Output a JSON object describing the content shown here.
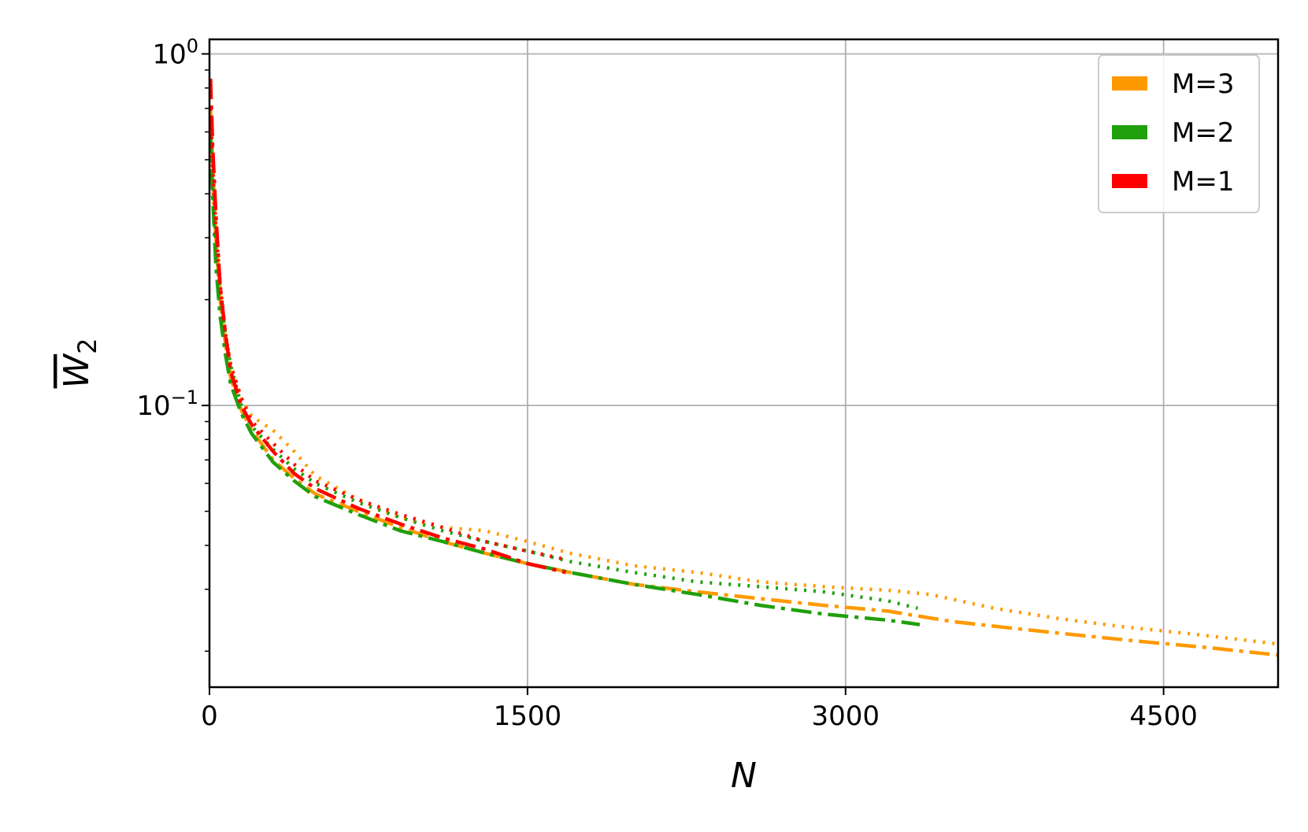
{
  "chart_data": {
    "type": "line",
    "title": "",
    "xlabel": "N",
    "ylabel": "W",
    "ylabel_subscript": "2",
    "yscale": "log",
    "xlim": [
      0,
      5040
    ],
    "ylim": [
      0.0158,
      1.1
    ],
    "grid": true,
    "legend_position": "top-right",
    "x_ticks": [
      {
        "value": 0,
        "label": "0"
      },
      {
        "value": 1500,
        "label": "1500"
      },
      {
        "value": 3000,
        "label": "3000"
      },
      {
        "value": 4500,
        "label": "4500"
      }
    ],
    "y_ticks": [
      {
        "value": 1.0,
        "base": "10",
        "exp": "0"
      },
      {
        "value": 0.1,
        "base": "10",
        "exp": "−1"
      }
    ],
    "y_minor_ticks": [
      0.02,
      0.03,
      0.04,
      0.05,
      0.06,
      0.07,
      0.08,
      0.09,
      0.2,
      0.3,
      0.4,
      0.5,
      0.6,
      0.7,
      0.8,
      0.9
    ],
    "legend": [
      {
        "label": "M=3",
        "color": "#ff9900"
      },
      {
        "label": "M=2",
        "color": "#1fa00c"
      },
      {
        "label": "M=1",
        "color": "#ff0000"
      }
    ],
    "series": [
      {
        "group": "M=3",
        "style": "dotted",
        "color": "#ff9900",
        "x": [
          5,
          15,
          30,
          50,
          75,
          100,
          150,
          200,
          300,
          400,
          500,
          700,
          900,
          1100,
          1300,
          1500,
          1700,
          2000,
          2300,
          2600,
          2900,
          3200,
          3400,
          3700,
          4000,
          4300,
          4600,
          4800,
          5030
        ],
        "y": [
          0.55,
          0.42,
          0.3,
          0.22,
          0.16,
          0.13,
          0.105,
          0.093,
          0.085,
          0.074,
          0.063,
          0.054,
          0.048,
          0.045,
          0.044,
          0.041,
          0.038,
          0.035,
          0.0335,
          0.0315,
          0.0305,
          0.0298,
          0.029,
          0.0265,
          0.0248,
          0.0235,
          0.0225,
          0.0218,
          0.021
        ]
      },
      {
        "group": "M=3",
        "style": "dashdot",
        "color": "#ff9900",
        "x": [
          5,
          15,
          30,
          50,
          75,
          100,
          150,
          200,
          300,
          400,
          500,
          700,
          900,
          1100,
          1300,
          1500,
          1700,
          2000,
          2300,
          2600,
          2900,
          3200,
          3500,
          3800,
          4100,
          4400,
          4700,
          5040
        ],
        "y": [
          0.7,
          0.5,
          0.3,
          0.2,
          0.15,
          0.12,
          0.097,
          0.085,
          0.07,
          0.062,
          0.056,
          0.05,
          0.045,
          0.041,
          0.038,
          0.0355,
          0.0335,
          0.031,
          0.0295,
          0.0282,
          0.027,
          0.026,
          0.0243,
          0.0232,
          0.0222,
          0.0213,
          0.0205,
          0.0195
        ]
      },
      {
        "group": "M=2",
        "style": "dotted",
        "color": "#1fa00c",
        "x": [
          5,
          15,
          30,
          50,
          75,
          100,
          150,
          200,
          300,
          400,
          500,
          700,
          900,
          1100,
          1300,
          1500,
          1700,
          2000,
          2300,
          2600,
          2900,
          3200,
          3340
        ],
        "y": [
          0.6,
          0.43,
          0.3,
          0.21,
          0.16,
          0.13,
          0.1,
          0.087,
          0.075,
          0.066,
          0.06,
          0.053,
          0.048,
          0.044,
          0.041,
          0.0385,
          0.036,
          0.0335,
          0.0315,
          0.0305,
          0.0295,
          0.0278,
          0.0265
        ]
      },
      {
        "group": "M=2",
        "style": "dashdot",
        "color": "#1fa00c",
        "x": [
          5,
          15,
          30,
          50,
          75,
          100,
          150,
          200,
          300,
          400,
          500,
          700,
          900,
          1100,
          1300,
          1500,
          1700,
          2000,
          2300,
          2600,
          2900,
          3200,
          3350
        ],
        "y": [
          0.6,
          0.4,
          0.25,
          0.18,
          0.14,
          0.115,
          0.095,
          0.083,
          0.069,
          0.061,
          0.055,
          0.049,
          0.044,
          0.041,
          0.038,
          0.0355,
          0.0335,
          0.031,
          0.029,
          0.027,
          0.0255,
          0.0245,
          0.0238
        ]
      },
      {
        "group": "M=1",
        "style": "dotted",
        "color": "#ff0000",
        "x": [
          5,
          15,
          30,
          50,
          75,
          100,
          150,
          200,
          300,
          400,
          500,
          700,
          900,
          1100,
          1300,
          1500,
          1680
        ],
        "y": [
          0.7,
          0.48,
          0.32,
          0.22,
          0.16,
          0.13,
          0.105,
          0.09,
          0.078,
          0.068,
          0.061,
          0.054,
          0.049,
          0.045,
          0.041,
          0.0385,
          0.0365
        ]
      },
      {
        "group": "M=1",
        "style": "dashdot",
        "color": "#ff0000",
        "x": [
          5,
          15,
          30,
          50,
          75,
          100,
          150,
          200,
          300,
          400,
          500,
          700,
          900,
          1100,
          1300,
          1500,
          1680
        ],
        "y": [
          0.85,
          0.55,
          0.35,
          0.22,
          0.16,
          0.125,
          0.1,
          0.088,
          0.074,
          0.064,
          0.058,
          0.051,
          0.046,
          0.042,
          0.039,
          0.0355,
          0.0335
        ]
      }
    ]
  }
}
